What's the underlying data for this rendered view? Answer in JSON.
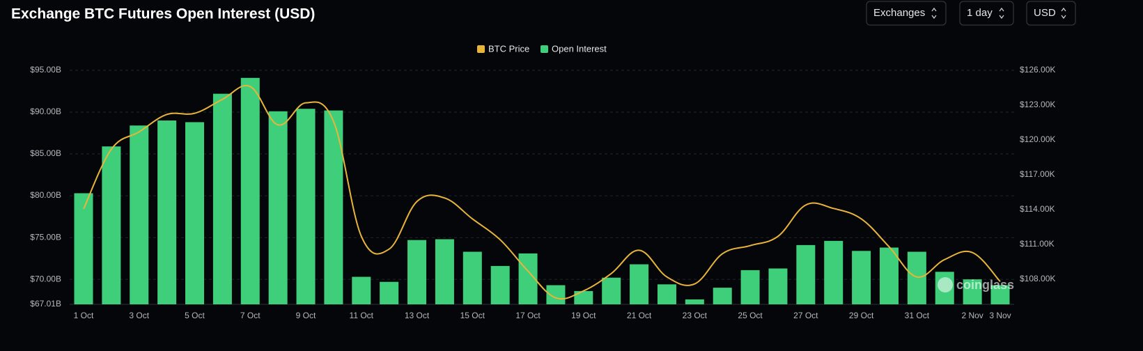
{
  "chart_data": {
    "type": "bar",
    "title": "Exchange BTC Futures Open Interest (USD)",
    "controls": [
      "Exchanges",
      "1 day",
      "USD"
    ],
    "watermark": "coinglass",
    "categories": [
      "1 Oct",
      null,
      "3 Oct",
      null,
      "5 Oct",
      null,
      "7 Oct",
      null,
      "9 Oct",
      null,
      "11 Oct",
      null,
      "13 Oct",
      null,
      "15 Oct",
      null,
      "17 Oct",
      null,
      "19 Oct",
      null,
      "21 Oct",
      null,
      "23 Oct",
      null,
      "25 Oct",
      null,
      "27 Oct",
      null,
      "29 Oct",
      null,
      "31 Oct",
      null,
      "2 Nov",
      "3 Nov"
    ],
    "series": [
      {
        "name": "BTC Price",
        "type": "line",
        "axis": "y2",
        "color": "#e8b53a",
        "values": [
          114.06,
          119.2,
          120.7,
          122.2,
          122.3,
          123.5,
          124.6,
          121.3,
          123.2,
          121.6,
          111.7,
          110.6,
          114.7,
          115.0,
          113.2,
          111.4,
          108.7,
          106.4,
          107.0,
          108.5,
          110.5,
          108.2,
          107.6,
          110.2,
          110.9,
          111.7,
          114.4,
          114.1,
          113.2,
          110.8,
          108.2,
          109.7,
          110.3,
          107.8
        ]
      },
      {
        "name": "Open Interest",
        "type": "bar",
        "color": "#3fcf7b",
        "values": [
          80.3,
          85.9,
          88.4,
          89.0,
          88.8,
          92.2,
          94.1,
          90.1,
          90.4,
          90.2,
          70.3,
          69.7,
          74.7,
          74.8,
          73.3,
          71.6,
          73.1,
          69.3,
          68.6,
          70.2,
          71.8,
          69.4,
          67.6,
          69.0,
          71.1,
          71.3,
          74.1,
          74.6,
          73.4,
          73.8,
          73.3,
          70.9,
          70.0,
          69.3
        ]
      }
    ],
    "ylim": [
      67.01,
      96
    ],
    "yticks": [
      {
        "value": 67.01,
        "label": "$67.01B"
      },
      {
        "value": 70,
        "label": "$70.00B"
      },
      {
        "value": 75,
        "label": "$75.00B"
      },
      {
        "value": 80,
        "label": "$80.00B"
      },
      {
        "value": 85,
        "label": "$85.00B"
      },
      {
        "value": 90,
        "label": "$90.00B"
      },
      {
        "value": 95,
        "label": "$95.00B"
      }
    ],
    "y2lim": [
      105.84,
      126.72
    ],
    "y2ticks": [
      {
        "value": 108,
        "label": "$108.00K"
      },
      {
        "value": 111,
        "label": "$111.00K"
      },
      {
        "value": 114,
        "label": "$114.00K"
      },
      {
        "value": 117,
        "label": "$117.00K"
      },
      {
        "value": 120,
        "label": "$120.00K"
      },
      {
        "value": 123,
        "label": "$123.00K"
      },
      {
        "value": 126,
        "label": "$126.00K"
      }
    ],
    "grid": true
  }
}
